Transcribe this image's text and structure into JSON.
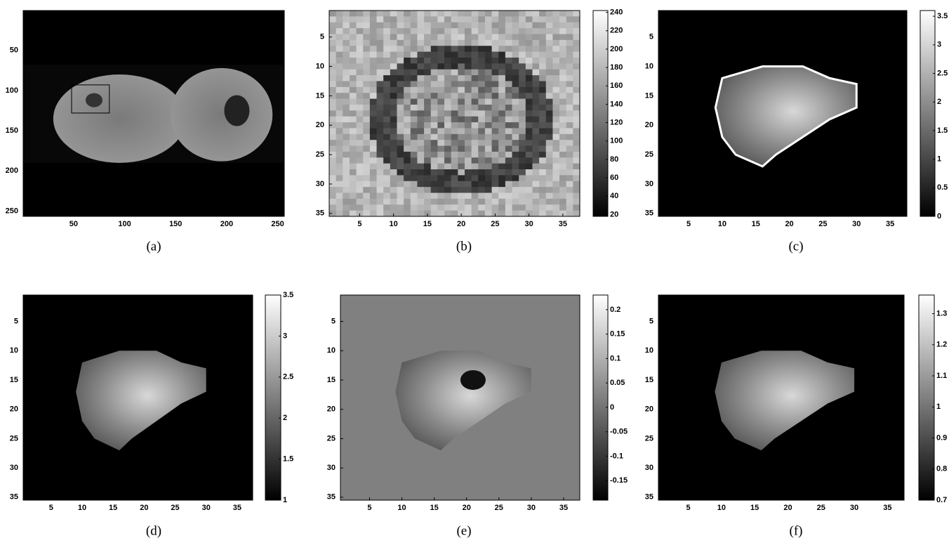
{
  "panels": [
    {
      "caption": "(a)",
      "xlim": [
        0.5,
        256.5
      ],
      "ylim": [
        0.5,
        256.5
      ],
      "xticks": [
        50,
        100,
        150,
        200,
        250
      ],
      "yticks": [
        50,
        100,
        150,
        200,
        250
      ]
    },
    {
      "caption": "(b)",
      "xlim": [
        0.5,
        37.5
      ],
      "ylim": [
        0.5,
        35.5
      ],
      "xticks": [
        5,
        10,
        15,
        20,
        25,
        30,
        35
      ],
      "yticks": [
        5,
        10,
        15,
        20,
        25,
        30,
        35
      ],
      "clim": [
        18,
        242
      ],
      "cticks": [
        20,
        40,
        60,
        80,
        100,
        120,
        140,
        160,
        180,
        200,
        220,
        240
      ]
    },
    {
      "caption": "(c)",
      "xlim": [
        0.5,
        37.5
      ],
      "ylim": [
        0.5,
        35.5
      ],
      "xticks": [
        5,
        10,
        15,
        20,
        25,
        30,
        35
      ],
      "yticks": [
        5,
        10,
        15,
        20,
        25,
        30,
        35
      ],
      "clim": [
        0,
        3.6
      ],
      "cticks": [
        0,
        0.5,
        1,
        1.5,
        2,
        2.5,
        3,
        3.5
      ]
    },
    {
      "caption": "(d)",
      "xlim": [
        0.5,
        37.5
      ],
      "ylim": [
        0.5,
        35.5
      ],
      "xticks": [
        5,
        10,
        15,
        20,
        25,
        30,
        35
      ],
      "yticks": [
        5,
        10,
        15,
        20,
        25,
        30,
        35
      ],
      "clim": [
        1,
        3.5
      ],
      "cticks": [
        1,
        1.5,
        2,
        2.5,
        3,
        3.5
      ]
    },
    {
      "caption": "(e)",
      "xlim": [
        0.5,
        37.5
      ],
      "ylim": [
        0.5,
        35.5
      ],
      "xticks": [
        5,
        10,
        15,
        20,
        25,
        30,
        35
      ],
      "yticks": [
        5,
        10,
        15,
        20,
        25,
        30,
        35
      ],
      "clim": [
        -0.19,
        0.23
      ],
      "cticks": [
        -0.15,
        -0.1,
        -0.05,
        0,
        0.05,
        0.1,
        0.15,
        0.2
      ]
    },
    {
      "caption": "(f)",
      "xlim": [
        0.5,
        37.5
      ],
      "ylim": [
        0.5,
        35.5
      ],
      "xticks": [
        5,
        10,
        15,
        20,
        25,
        30,
        35
      ],
      "yticks": [
        5,
        10,
        15,
        20,
        25,
        30,
        35
      ],
      "clim": [
        0.7,
        1.36
      ],
      "cticks": [
        0.7,
        0.8,
        0.9,
        1,
        1.1,
        1.2,
        1.3
      ]
    }
  ]
}
